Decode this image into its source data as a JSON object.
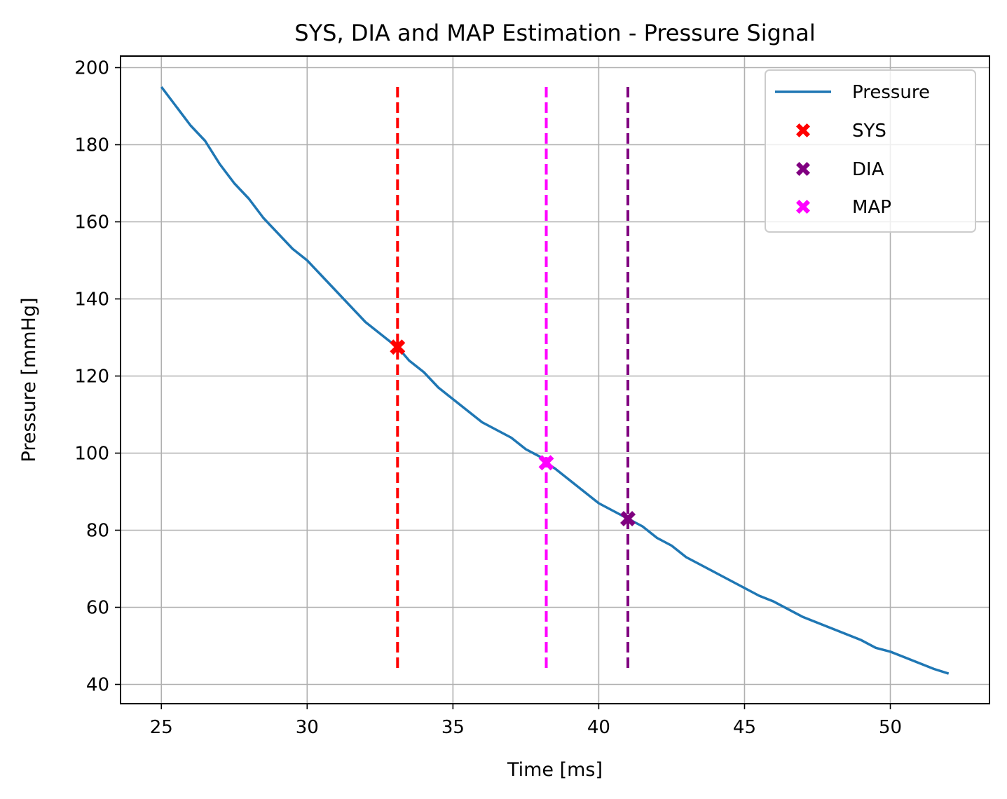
{
  "chart_data": {
    "type": "line",
    "title": "SYS, DIA and MAP Estimation - Pressure Signal",
    "xlabel": "Time [ms]",
    "ylabel": "Pressure [mmHg]",
    "xlim": [
      23.6,
      53.4
    ],
    "ylim": [
      35,
      203
    ],
    "xticks": [
      25,
      30,
      35,
      40,
      45,
      50
    ],
    "yticks": [
      40,
      60,
      80,
      100,
      120,
      140,
      160,
      180,
      200
    ],
    "grid": true,
    "legend_position": "top-right",
    "series": [
      {
        "name": "Pressure",
        "color": "#1f77b4",
        "x": [
          25,
          25.5,
          26,
          26.5,
          27,
          27.5,
          28,
          28.5,
          29,
          29.5,
          30,
          30.5,
          31,
          31.5,
          32,
          32.5,
          33,
          33.1,
          33.5,
          34,
          34.5,
          35,
          35.5,
          36,
          36.5,
          37,
          37.5,
          38,
          38.2,
          38.5,
          39,
          39.5,
          40,
          40.5,
          41,
          41.5,
          42,
          42.5,
          43,
          43.5,
          44,
          44.5,
          45,
          45.5,
          46,
          46.5,
          47,
          47.5,
          48,
          48.5,
          49,
          49.5,
          50,
          50.5,
          51,
          51.5,
          52
        ],
        "y": [
          195,
          190,
          185,
          181,
          175,
          170,
          166,
          161,
          157,
          153,
          150,
          146,
          142,
          138,
          134,
          131,
          128,
          127.5,
          124,
          121,
          117,
          114,
          111,
          108,
          106,
          104,
          101,
          99,
          97.5,
          96,
          93,
          90,
          87,
          85,
          83,
          81,
          78,
          76,
          73,
          71,
          69,
          67,
          65,
          63,
          61.5,
          59.5,
          57.5,
          56,
          54.5,
          53,
          51.5,
          49.5,
          48.5,
          47,
          45.5,
          44,
          42.8
        ]
      }
    ],
    "markers": [
      {
        "name": "SYS",
        "x": 33.1,
        "y": 127.5,
        "color": "#ff0000"
      },
      {
        "name": "DIA",
        "x": 41.0,
        "y": 83.0,
        "color": "#800080"
      },
      {
        "name": "MAP",
        "x": 38.2,
        "y": 97.5,
        "color": "#ff00ff"
      }
    ],
    "vlines": [
      {
        "x": 33.1,
        "ymin": 43,
        "ymax": 195,
        "color": "#ff0000"
      },
      {
        "x": 38.2,
        "ymin": 43,
        "ymax": 195,
        "color": "#ff00ff"
      },
      {
        "x": 41.0,
        "ymin": 43,
        "ymax": 195,
        "color": "#800080"
      }
    ]
  }
}
